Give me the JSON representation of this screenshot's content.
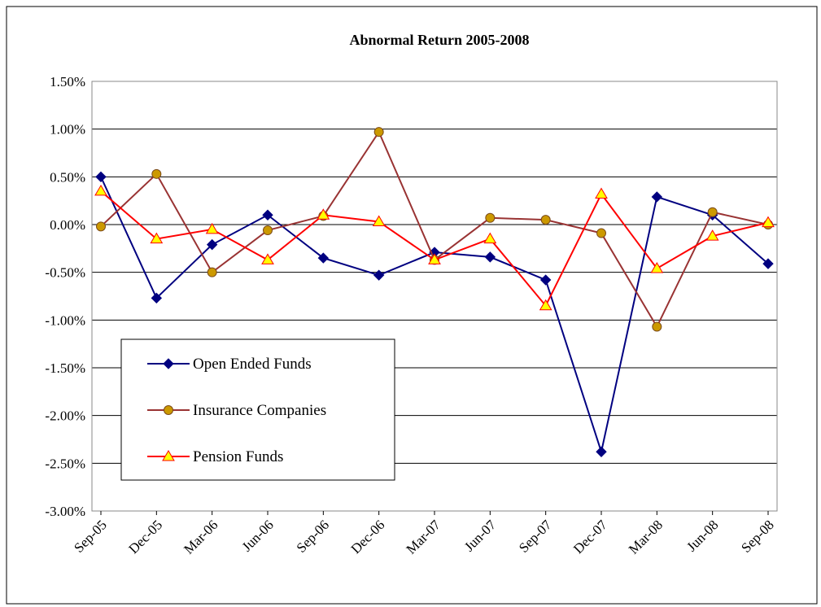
{
  "chart_data": {
    "type": "line",
    "title": "Abnormal Return 2005-2008",
    "categories": [
      "Sep-05",
      "Dec-05",
      "Mar-06",
      "Jun-06",
      "Sep-06",
      "Dec-06",
      "Mar-07",
      "Jun-07",
      "Sep-07",
      "Dec-07",
      "Mar-08",
      "Jun-08",
      "Sep-08"
    ],
    "series": [
      {
        "name": "Open Ended Funds",
        "color": "#000080",
        "marker": "diamond",
        "marker_fill": "#000080",
        "values": [
          0.5,
          -0.77,
          -0.21,
          0.1,
          -0.35,
          -0.53,
          -0.29,
          -0.34,
          -0.58,
          -2.38,
          0.29,
          0.1,
          -0.41
        ]
      },
      {
        "name": "Insurance Companies",
        "color": "#993333",
        "marker": "circle",
        "marker_fill": "#CC9900",
        "values": [
          -0.02,
          0.53,
          -0.5,
          -0.06,
          0.09,
          0.97,
          -0.37,
          0.07,
          0.05,
          -0.09,
          -1.07,
          0.13,
          0.0
        ]
      },
      {
        "name": "Pension Funds",
        "color": "#FF0000",
        "marker": "triangle",
        "marker_fill": "#FFFF00",
        "values": [
          0.35,
          -0.15,
          -0.05,
          -0.37,
          0.1,
          0.03,
          -0.37,
          -0.15,
          -0.85,
          0.32,
          -0.46,
          -0.12,
          0.02
        ]
      }
    ],
    "ylim": [
      -3.0,
      1.5
    ],
    "yticks": [
      {
        "value": -3.0,
        "label": "-3.00%"
      },
      {
        "value": -2.5,
        "label": "-2.50%"
      },
      {
        "value": -2.0,
        "label": "-2.00%"
      },
      {
        "value": -1.5,
        "label": "-1.50%"
      },
      {
        "value": -1.0,
        "label": "-1.00%"
      },
      {
        "value": -0.5,
        "label": "-0.50%"
      },
      {
        "value": 0,
        "label": "0.00%"
      },
      {
        "value": 0.5,
        "label": "0.50%"
      },
      {
        "value": 1.0,
        "label": "1.00%"
      },
      {
        "value": 1.5,
        "label": "1.50%"
      }
    ],
    "grid": true
  }
}
